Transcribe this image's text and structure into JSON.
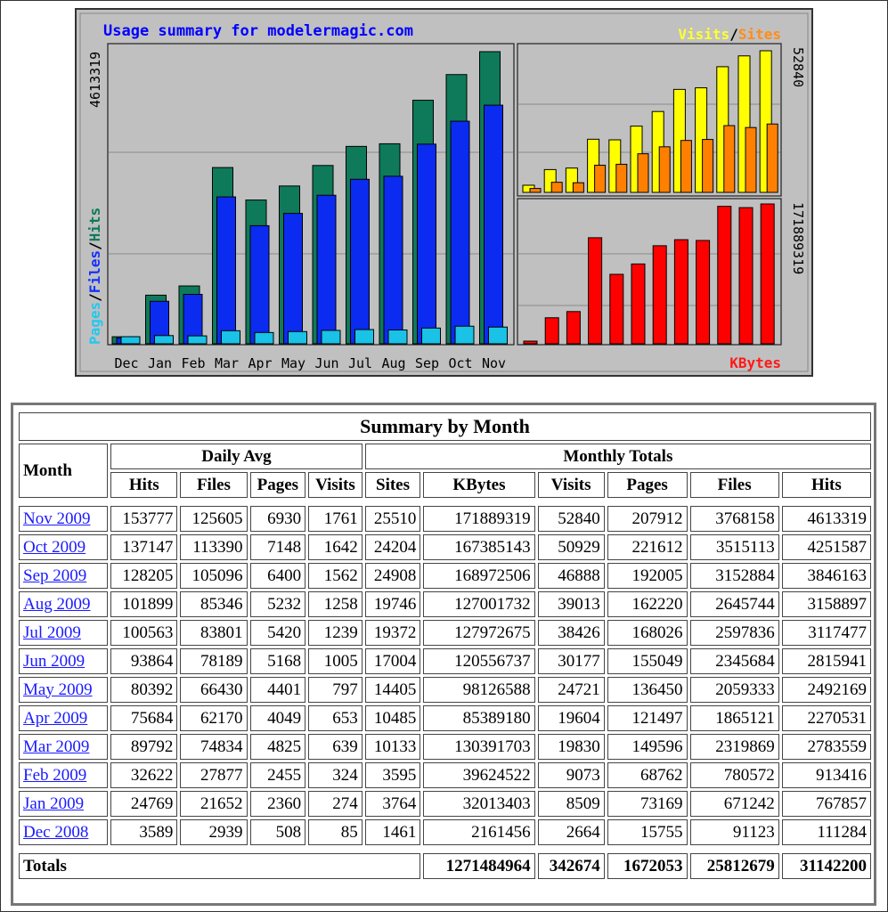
{
  "chart_data": [
    {
      "type": "bar",
      "title": "Usage summary for modelermagic.com",
      "categories": [
        "Dec",
        "Jan",
        "Feb",
        "Mar",
        "Apr",
        "May",
        "Jun",
        "Jul",
        "Aug",
        "Sep",
        "Oct",
        "Nov"
      ],
      "series": [
        {
          "name": "Hits",
          "color": "#0e7a5a",
          "values": [
            111284,
            767857,
            913416,
            2783559,
            2270531,
            2492169,
            2815941,
            3117477,
            3158897,
            3846163,
            4251587,
            4613319
          ]
        },
        {
          "name": "Files",
          "color": "#0b2bf0",
          "values": [
            91123,
            671242,
            780572,
            2319869,
            1865121,
            2059333,
            2345684,
            2597836,
            2645744,
            3152884,
            3515113,
            3768158
          ]
        },
        {
          "name": "Pages",
          "color": "#19c2e6",
          "values": [
            15755,
            73169,
            68762,
            149596,
            121497,
            136450,
            155049,
            168026,
            162220,
            192005,
            221612,
            207912
          ]
        }
      ],
      "ymax_label": "4613319",
      "legend": [
        "Pages",
        "Files",
        "Hits"
      ],
      "ylim": [
        0,
        4613319
      ]
    },
    {
      "type": "bar",
      "title": "Visits / Sites",
      "categories": [
        "Dec",
        "Jan",
        "Feb",
        "Mar",
        "Apr",
        "May",
        "Jun",
        "Jul",
        "Aug",
        "Sep",
        "Oct",
        "Nov"
      ],
      "series": [
        {
          "name": "Visits",
          "color": "#ffff00",
          "values": [
            2664,
            8509,
            9073,
            19830,
            19604,
            24721,
            30177,
            38426,
            39013,
            46888,
            50929,
            52840
          ]
        },
        {
          "name": "Sites",
          "color": "#ff8000",
          "values": [
            1461,
            3764,
            3595,
            10133,
            10485,
            14405,
            17004,
            19372,
            19746,
            24908,
            24204,
            25510
          ]
        }
      ],
      "ymax_label": "52840",
      "legend": [
        "Visits",
        "Sites"
      ],
      "ylim": [
        0,
        52840
      ]
    },
    {
      "type": "bar",
      "title": "KBytes",
      "categories": [
        "Dec",
        "Jan",
        "Feb",
        "Mar",
        "Apr",
        "May",
        "Jun",
        "Jul",
        "Aug",
        "Sep",
        "Oct",
        "Nov"
      ],
      "series": [
        {
          "name": "KBytes",
          "color": "#ff0000",
          "values": [
            2161456,
            32013403,
            39624522,
            130391703,
            85389180,
            98126588,
            120556737,
            127972675,
            127001732,
            168972506,
            167385143,
            171889319
          ]
        }
      ],
      "ymax_label": "171889319",
      "legend": [
        "KBytes"
      ],
      "ylim": [
        0,
        171889319
      ]
    }
  ],
  "legend_slash": "/",
  "summary": {
    "title": "Summary by Month",
    "month_header": "Month",
    "daily_avg_header": "Daily Avg",
    "monthly_totals_header": "Monthly Totals",
    "daily_cols": [
      "Hits",
      "Files",
      "Pages",
      "Visits"
    ],
    "monthly_cols": [
      "Sites",
      "KBytes",
      "Visits",
      "Pages",
      "Files",
      "Hits"
    ],
    "rows": [
      {
        "month": "Nov 2009",
        "cells": [
          "153777",
          "125605",
          "6930",
          "1761",
          "25510",
          "171889319",
          "52840",
          "207912",
          "3768158",
          "4613319"
        ]
      },
      {
        "month": "Oct 2009",
        "cells": [
          "137147",
          "113390",
          "7148",
          "1642",
          "24204",
          "167385143",
          "50929",
          "221612",
          "3515113",
          "4251587"
        ]
      },
      {
        "month": "Sep 2009",
        "cells": [
          "128205",
          "105096",
          "6400",
          "1562",
          "24908",
          "168972506",
          "46888",
          "192005",
          "3152884",
          "3846163"
        ]
      },
      {
        "month": "Aug 2009",
        "cells": [
          "101899",
          "85346",
          "5232",
          "1258",
          "19746",
          "127001732",
          "39013",
          "162220",
          "2645744",
          "3158897"
        ]
      },
      {
        "month": "Jul 2009",
        "cells": [
          "100563",
          "83801",
          "5420",
          "1239",
          "19372",
          "127972675",
          "38426",
          "168026",
          "2597836",
          "3117477"
        ]
      },
      {
        "month": "Jun 2009",
        "cells": [
          "93864",
          "78189",
          "5168",
          "1005",
          "17004",
          "120556737",
          "30177",
          "155049",
          "2345684",
          "2815941"
        ]
      },
      {
        "month": "May 2009",
        "cells": [
          "80392",
          "66430",
          "4401",
          "797",
          "14405",
          "98126588",
          "24721",
          "136450",
          "2059333",
          "2492169"
        ]
      },
      {
        "month": "Apr 2009",
        "cells": [
          "75684",
          "62170",
          "4049",
          "653",
          "10485",
          "85389180",
          "19604",
          "121497",
          "1865121",
          "2270531"
        ]
      },
      {
        "month": "Mar 2009",
        "cells": [
          "89792",
          "74834",
          "4825",
          "639",
          "10133",
          "130391703",
          "19830",
          "149596",
          "2319869",
          "2783559"
        ]
      },
      {
        "month": "Feb 2009",
        "cells": [
          "32622",
          "27877",
          "2455",
          "324",
          "3595",
          "39624522",
          "9073",
          "68762",
          "780572",
          "913416"
        ]
      },
      {
        "month": "Jan 2009",
        "cells": [
          "24769",
          "21652",
          "2360",
          "274",
          "3764",
          "32013403",
          "8509",
          "73169",
          "671242",
          "767857"
        ]
      },
      {
        "month": "Dec 2008",
        "cells": [
          "3589",
          "2939",
          "508",
          "85",
          "1461",
          "2161456",
          "2664",
          "15755",
          "91123",
          "111284"
        ]
      }
    ],
    "totals_label": "Totals",
    "totals": [
      "1271484964",
      "342674",
      "1672053",
      "25812679",
      "31142200"
    ]
  }
}
